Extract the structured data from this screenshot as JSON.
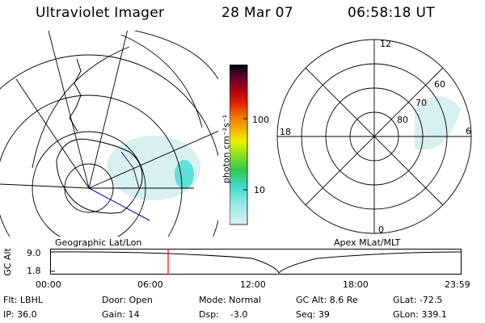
{
  "header": {
    "instrument": "Ultraviolet Imager",
    "date": "28 Mar 07",
    "time": "06:58:18 UT"
  },
  "colorbar": {
    "unit_label": "photon cm⁻²s⁻¹",
    "ticks": [
      "100",
      "10"
    ],
    "scale": "log",
    "colors": [
      "#d8f0f0",
      "#9ce8e8",
      "#40d8c8",
      "#30c850",
      "#90e020",
      "#f0f000",
      "#f0b000",
      "#f07000",
      "#e02000",
      "#b00010",
      "#600030",
      "#200030",
      "#000000"
    ]
  },
  "left_panel": {
    "caption": "Geographic Lat/Lon"
  },
  "right_panel": {
    "caption": "Apex MLat/MLT",
    "mlt_labels": {
      "top": "12",
      "right": "6",
      "bottom": "0",
      "left": "18"
    },
    "mlat_labels": [
      "60",
      "70",
      "80"
    ]
  },
  "altitude_plot": {
    "ylabel": "GC Alt",
    "y_ticks": [
      "9.0",
      "1.8"
    ],
    "x_ticks": [
      "00:00",
      "06:00",
      "12:00",
      "18:00",
      "23:59"
    ],
    "current_time_marker": "06:58",
    "marker_color": "#ff0000"
  },
  "info": {
    "flt": "Flt: LBHL",
    "ip": "IP: 36.0",
    "door": "Door: Open",
    "gain": "Gain: 14",
    "mode": "Mode: Normal",
    "dsp": "Dsp:    -3.0",
    "gcalt": "GC Alt: 8.6 Re",
    "seq": "Seq: 39",
    "glat": "GLat: -72.5",
    "glon": "GLon: 339.1"
  }
}
